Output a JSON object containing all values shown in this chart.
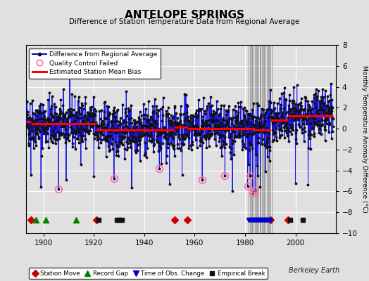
{
  "title": "ANTELOPE SPRINGS",
  "subtitle": "Difference of Station Temperature Data from Regional Average",
  "ylabel": "Monthly Temperature Anomaly Difference (°C)",
  "background_color": "#e0e0e0",
  "plot_bg_color": "#e0e0e0",
  "ylim": [
    -10,
    8
  ],
  "xlim": [
    1893,
    2016
  ],
  "yticks": [
    -10,
    -8,
    -6,
    -4,
    -2,
    0,
    2,
    4,
    6,
    8
  ],
  "xticks": [
    1900,
    1920,
    1940,
    1960,
    1980,
    2000
  ],
  "seed": 42,
  "station_moves": [
    1895,
    1921,
    1952,
    1957,
    1990,
    1997
  ],
  "record_gaps": [
    1897,
    1901,
    1913
  ],
  "empirical_breaks": [
    1922,
    1929,
    1930,
    1931,
    1998,
    2003
  ],
  "bias_segments": [
    {
      "x": [
        1893,
        1895
      ],
      "y": [
        0.7,
        0.7
      ]
    },
    {
      "x": [
        1895,
        1921
      ],
      "y": [
        0.5,
        0.5
      ]
    },
    {
      "x": [
        1921,
        1952
      ],
      "y": [
        -0.1,
        -0.1
      ]
    },
    {
      "x": [
        1952,
        1957
      ],
      "y": [
        0.15,
        0.15
      ]
    },
    {
      "x": [
        1957,
        1983
      ],
      "y": [
        0.0,
        0.0
      ]
    },
    {
      "x": [
        1983,
        1990
      ],
      "y": [
        -0.1,
        -0.1
      ]
    },
    {
      "x": [
        1990,
        1997
      ],
      "y": [
        0.8,
        0.8
      ]
    },
    {
      "x": [
        1997,
        2015
      ],
      "y": [
        1.2,
        1.2
      ]
    }
  ],
  "tobs_start": 1981.5,
  "tobs_end": 1990.5,
  "tobs_count": 20,
  "watermark": "Berkeley Earth"
}
